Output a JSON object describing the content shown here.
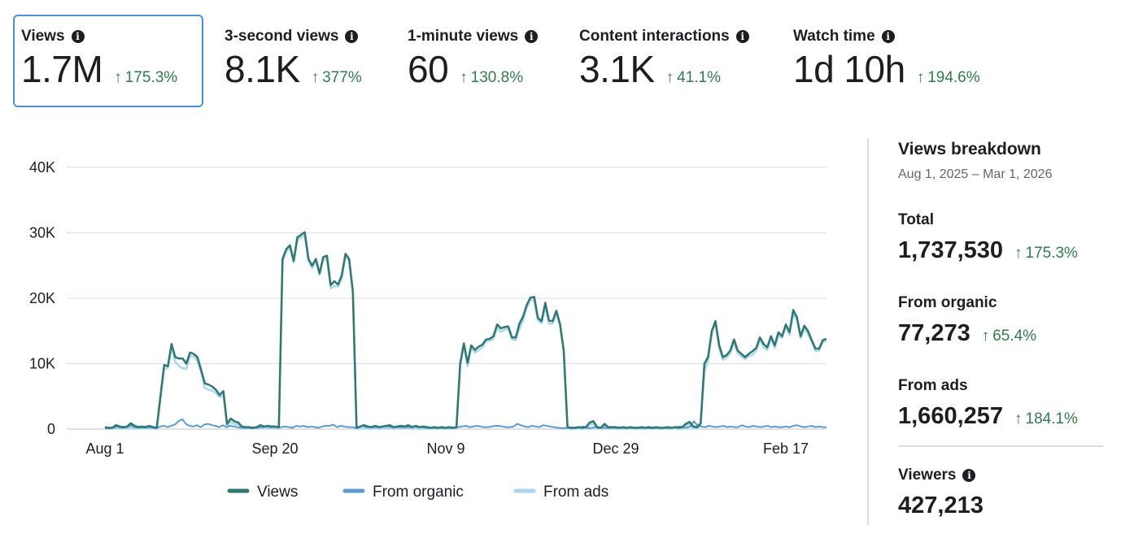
{
  "metrics": [
    {
      "label": "Views",
      "value": "1.7M",
      "change": "175.3%",
      "selected": true
    },
    {
      "label": "3-second views",
      "value": "8.1K",
      "change": "377%",
      "selected": false
    },
    {
      "label": "1-minute views",
      "value": "60",
      "change": "130.8%",
      "selected": false
    },
    {
      "label": "Content interactions",
      "value": "3.1K",
      "change": "41.1%",
      "selected": false
    },
    {
      "label": "Watch time",
      "value": "1d 10h",
      "change": "194.6%",
      "selected": false
    }
  ],
  "breakdown": {
    "title": "Views breakdown",
    "date_range": "Aug 1, 2025 – Mar 1, 2026",
    "total": {
      "label": "Total",
      "value": "1,737,530",
      "change": "175.3%"
    },
    "organic": {
      "label": "From organic",
      "value": "77,273",
      "change": "65.4%"
    },
    "ads": {
      "label": "From ads",
      "value": "1,660,257",
      "change": "184.1%"
    },
    "viewers": {
      "label": "Viewers",
      "value": "427,213"
    }
  },
  "colors": {
    "views": "#2e7873",
    "organic": "#5b9bd5",
    "ads": "#a8d8f0",
    "positive": "#2e7d4f",
    "grid": "#dadde1"
  },
  "chart_data": {
    "type": "line",
    "x_ticks": [
      "Aug 1",
      "Sep 20",
      "Nov 9",
      "Dec 29",
      "Feb 17"
    ],
    "y_ticks": [
      "0",
      "10K",
      "20K",
      "30K",
      "40K"
    ],
    "ylim": [
      0,
      40000
    ],
    "legend": [
      "Views",
      "From organic",
      "From ads"
    ],
    "series": [
      {
        "name": "Views",
        "values": [
          300,
          200,
          200,
          600,
          400,
          300,
          400,
          900,
          500,
          300,
          400,
          300,
          500,
          300,
          200,
          5000,
          9800,
          9600,
          13000,
          11000,
          10800,
          10800,
          10000,
          11700,
          11500,
          11000,
          9000,
          7000,
          6800,
          6500,
          6000,
          5200,
          5800,
          800,
          1600,
          1200,
          1000,
          400,
          300,
          300,
          200,
          300,
          600,
          400,
          500,
          400,
          400,
          300,
          26000,
          27500,
          28100,
          25700,
          29300,
          29700,
          30100,
          26000,
          25000,
          26000,
          23800,
          26300,
          26500,
          22000,
          22600,
          22100,
          23500,
          26800,
          26000,
          21000,
          200,
          400,
          600,
          400,
          300,
          500,
          300,
          400,
          500,
          600,
          300,
          400,
          500,
          400,
          600,
          300,
          500,
          300,
          400,
          300,
          200,
          300,
          200,
          300,
          200,
          300,
          200,
          300,
          10000,
          13100,
          10100,
          12800,
          12100,
          12600,
          12900,
          13700,
          13800,
          14200,
          16000,
          15400,
          15600,
          15700,
          14000,
          14000,
          16100,
          17200,
          19000,
          20100,
          20200,
          17000,
          16500,
          19300,
          16600,
          16500,
          18100,
          16000,
          12000,
          300,
          200,
          200,
          300,
          200,
          300,
          1000,
          1200,
          300,
          200,
          800,
          300,
          300,
          300,
          200,
          300,
          200,
          300,
          200,
          200,
          300,
          200,
          300,
          200,
          300,
          200,
          200,
          300,
          200,
          300,
          200,
          300,
          800,
          1100,
          400,
          300,
          900,
          10000,
          11000,
          15000,
          16500,
          12800,
          11000,
          11300,
          12000,
          13700,
          12000,
          11500,
          11000,
          11500,
          11900,
          12400,
          14000,
          13000,
          12500,
          14200,
          12800,
          14800,
          14200,
          16000,
          14800,
          18200,
          17100,
          14200,
          15800,
          15000,
          13600,
          12300,
          12300,
          13600,
          13800
        ]
      },
      {
        "name": "From organic",
        "values": [
          100,
          80,
          120,
          400,
          260,
          200,
          300,
          600,
          300,
          200,
          260,
          200,
          300,
          200,
          150,
          400,
          500,
          300,
          500,
          700,
          1200,
          1500,
          800,
          500,
          400,
          600,
          300,
          700,
          800,
          600,
          500,
          300,
          600,
          300,
          500,
          400,
          300,
          200,
          200,
          200,
          100,
          200,
          300,
          300,
          400,
          300,
          300,
          250,
          300,
          400,
          300,
          200,
          500,
          400,
          500,
          300,
          400,
          300,
          200,
          400,
          500,
          500,
          700,
          300,
          500,
          400,
          300,
          300,
          200,
          300,
          500,
          300,
          300,
          300,
          300,
          300,
          400,
          400,
          300,
          300,
          300,
          300,
          300,
          300,
          400,
          300,
          300,
          200,
          150,
          200,
          150,
          200,
          150,
          200,
          150,
          200,
          300,
          400,
          500,
          300,
          400,
          500,
          400,
          300,
          300,
          400,
          500,
          500,
          400,
          300,
          300,
          400,
          800,
          600,
          400,
          300,
          500,
          400,
          300,
          600,
          500,
          400,
          300,
          200,
          150,
          150,
          200,
          150,
          200,
          300,
          400,
          200,
          150,
          300,
          200,
          200,
          200,
          150,
          200,
          150,
          200,
          150,
          150,
          200,
          150,
          200,
          150,
          200,
          150,
          150,
          200,
          150,
          200,
          150,
          200,
          300,
          400,
          300,
          200,
          400,
          1200,
          500,
          400,
          300,
          500,
          400,
          300,
          400,
          500,
          300,
          400,
          300,
          300,
          600,
          400,
          300,
          500,
          400,
          300,
          400,
          500,
          300,
          400,
          300,
          300,
          400,
          300,
          500,
          600,
          400,
          300,
          400,
          500,
          300,
          400,
          300,
          300
        ]
      },
      {
        "name": "From ads",
        "values": [
          200,
          120,
          80,
          200,
          140,
          100,
          100,
          300,
          200,
          100,
          140,
          100,
          200,
          100,
          50,
          4600,
          9300,
          9300,
          12500,
          10300,
          9600,
          9300,
          9200,
          11200,
          11100,
          10400,
          8700,
          6300,
          6000,
          5900,
          5500,
          4900,
          5200,
          500,
          1100,
          800,
          700,
          200,
          100,
          100,
          100,
          100,
          300,
          100,
          100,
          100,
          100,
          50,
          25700,
          27100,
          27800,
          25500,
          28800,
          29300,
          29600,
          25700,
          24600,
          25700,
          23600,
          25900,
          26000,
          21500,
          21900,
          21800,
          23000,
          26400,
          25700,
          20700,
          0,
          100,
          100,
          100,
          0,
          200,
          0,
          100,
          100,
          200,
          0,
          100,
          200,
          100,
          300,
          0,
          100,
          0,
          100,
          100,
          50,
          100,
          50,
          100,
          50,
          100,
          50,
          100,
          9700,
          12700,
          9600,
          12500,
          11700,
          12100,
          12500,
          13400,
          13500,
          13800,
          15500,
          14900,
          15200,
          15400,
          13700,
          13600,
          15300,
          16600,
          18600,
          19800,
          19700,
          16600,
          16200,
          18700,
          16100,
          16100,
          17800,
          15800,
          11850,
          150,
          0,
          50,
          100,
          50,
          100,
          700,
          800,
          100,
          50,
          500,
          100,
          100,
          100,
          50,
          100,
          50,
          100,
          50,
          50,
          100,
          50,
          100,
          50,
          100,
          50,
          50,
          100,
          50,
          100,
          50,
          100,
          500,
          700,
          100,
          100,
          500,
          8800,
          10500,
          14600,
          16200,
          12300,
          10600,
          11000,
          11600,
          13200,
          11600,
          11100,
          10700,
          11200,
          11300,
          12000,
          13700,
          12500,
          12100,
          13900,
          12400,
          14300,
          13900,
          15700,
          14400,
          17600,
          16700,
          13900,
          15400,
          14500,
          13300,
          11900,
          12000,
          13300,
          13500
        ]
      }
    ]
  }
}
